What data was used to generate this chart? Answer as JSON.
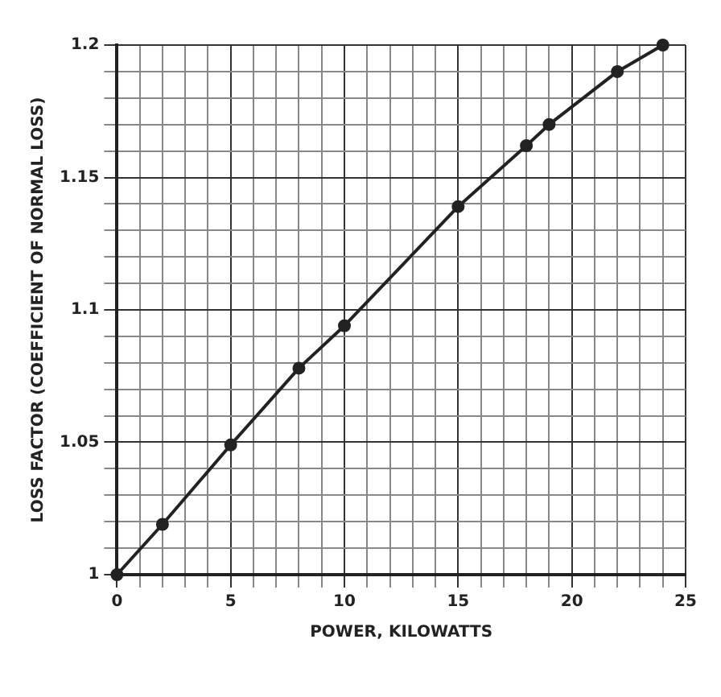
{
  "chart_data": {
    "type": "line",
    "xlabel": "POWER, KILOWATTS",
    "ylabel": "LOSS FACTOR (COEFFICIENT OF NORMAL LOSS)",
    "x": [
      0,
      2,
      5,
      8,
      10,
      15,
      18,
      19,
      22,
      24
    ],
    "series": [
      {
        "color": "#222222",
        "values": [
          1,
          1.019,
          1.049,
          1.078,
          1.094,
          1.139,
          1.162,
          1.17,
          1.19,
          1.2
        ]
      }
    ],
    "xlim": [
      0,
      25
    ],
    "ylim": [
      1,
      1.2
    ],
    "xticks": [
      0,
      {
        "value": 1,
        "label": null
      },
      {
        "value": 2,
        "label": null
      },
      {
        "value": 3,
        "label": null
      },
      {
        "value": 4,
        "label": null
      },
      5,
      {
        "value": 6,
        "label": null
      },
      {
        "value": 7,
        "label": null
      },
      {
        "value": 8,
        "label": null
      },
      {
        "value": 9,
        "label": null
      },
      10,
      {
        "value": 11,
        "label": null
      },
      {
        "value": 12,
        "label": null
      },
      {
        "value": 13,
        "label": null
      },
      {
        "value": 14,
        "label": null
      },
      15,
      {
        "value": 16,
        "label": null
      },
      {
        "value": 17,
        "label": null
      },
      {
        "value": 18,
        "label": null
      },
      {
        "value": 19,
        "label": null
      },
      20,
      {
        "value": 21,
        "label": null
      },
      {
        "value": 22,
        "label": null
      },
      {
        "value": 23,
        "label": null
      },
      {
        "value": 24,
        "label": null
      },
      25
    ],
    "yticks": [
      1,
      {
        "value": 1.01,
        "label": null
      },
      {
        "value": 1.02,
        "label": null
      },
      {
        "value": 1.03,
        "label": null
      },
      {
        "value": 1.04,
        "label": null
      },
      1.05,
      {
        "value": 1.06,
        "label": null
      },
      {
        "value": 1.07,
        "label": null
      },
      {
        "value": 1.08,
        "label": null
      },
      {
        "value": 1.09,
        "label": null
      },
      1.1,
      {
        "value": 1.11,
        "label": null
      },
      {
        "value": 1.12,
        "label": null
      },
      {
        "value": 1.13,
        "label": null
      },
      {
        "value": 1.14,
        "label": null
      },
      1.15,
      {
        "value": 1.16,
        "label": null
      },
      {
        "value": 1.17,
        "label": null
      },
      {
        "value": 1.18,
        "label": null
      },
      {
        "value": 1.19,
        "label": null
      },
      1.2
    ],
    "grid": true,
    "legend": false,
    "marker": "circle",
    "line_style": "solid"
  }
}
